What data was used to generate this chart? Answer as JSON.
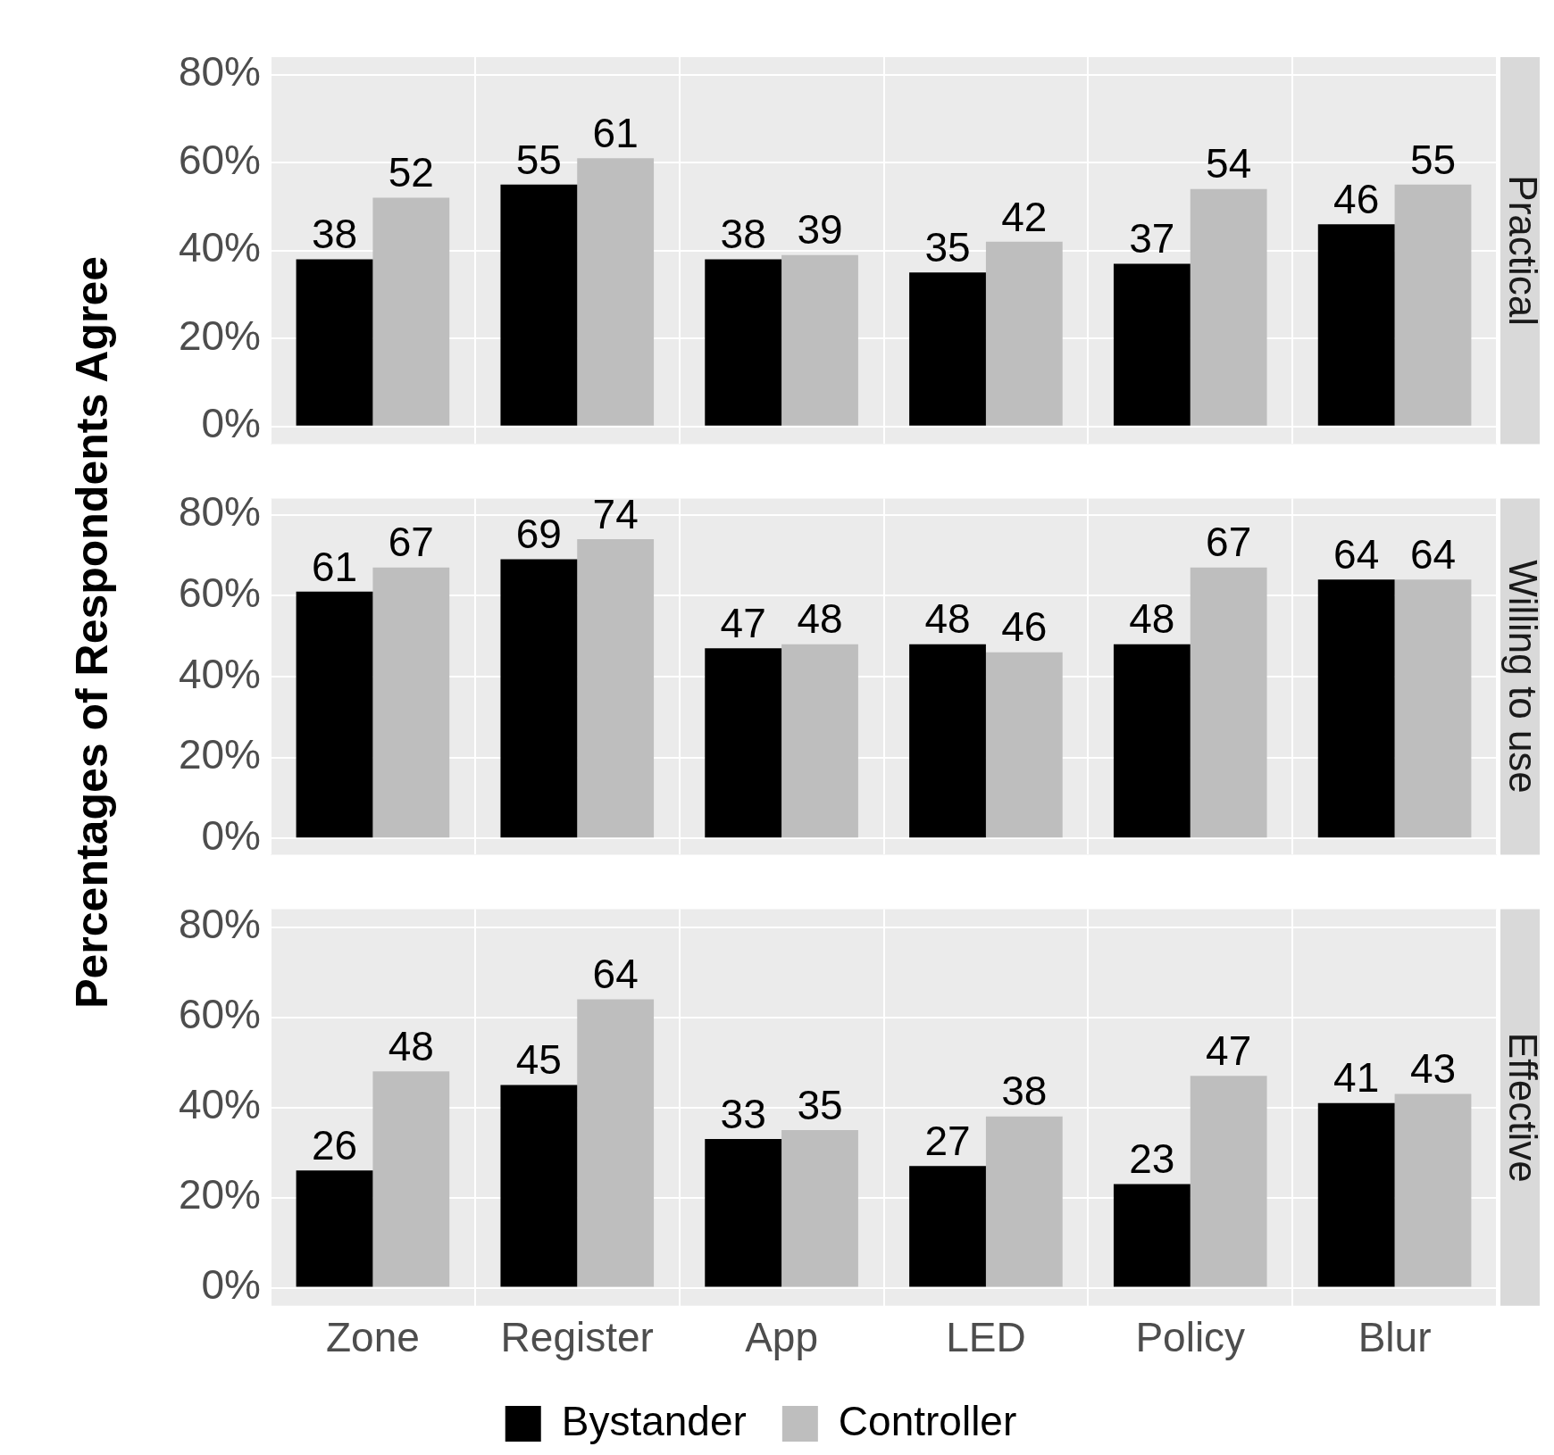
{
  "chart_data": [
    {
      "type": "bar",
      "title": "Practical",
      "categories": [
        null,
        null,
        null,
        null,
        null,
        null
      ],
      "series": [
        {
          "color": "#000000",
          "values": [
            38,
            55,
            38,
            35,
            37,
            46
          ]
        },
        {
          "color": "#bebebe",
          "values": [
            52,
            61,
            39,
            42,
            54,
            55
          ]
        }
      ],
      "ylim": [
        -4,
        84
      ],
      "yticks": [
        {
          "value": 0,
          "label": "0%"
        },
        {
          "value": 20,
          "label": "20%"
        },
        {
          "value": 40,
          "label": "40%"
        },
        {
          "value": 60,
          "label": "60%"
        },
        {
          "value": 80,
          "label": "80%"
        }
      ],
      "grid": true,
      "data_labels": true,
      "tick_labels": "y",
      "legend": false
    },
    {
      "type": "bar",
      "title": "Willing to use",
      "ylabel": "Percentages of Respondents Agree",
      "categories": [
        null,
        null,
        null,
        null,
        null,
        null
      ],
      "series": [
        {
          "color": "#000000",
          "values": [
            61,
            69,
            47,
            48,
            48,
            64
          ]
        },
        {
          "color": "#bebebe",
          "values": [
            67,
            74,
            48,
            46,
            67,
            64
          ]
        }
      ],
      "ylim": [
        -4,
        84
      ],
      "yticks": [
        {
          "value": 0,
          "label": "0%"
        },
        {
          "value": 20,
          "label": "20%"
        },
        {
          "value": 40,
          "label": "40%"
        },
        {
          "value": 60,
          "label": "60%"
        },
        {
          "value": 80,
          "label": "80%"
        }
      ],
      "grid": true,
      "data_labels": true,
      "tick_labels": "y",
      "legend": false
    },
    {
      "type": "bar",
      "title": "Effective",
      "categories": [
        "Zone",
        "Register",
        "App",
        "LED",
        "Policy",
        "Blur"
      ],
      "series": [
        {
          "name": "Bystander",
          "color": "#000000",
          "values": [
            26,
            45,
            33,
            27,
            23,
            41
          ]
        },
        {
          "name": "Controller",
          "color": "#bebebe",
          "values": [
            48,
            64,
            35,
            38,
            47,
            43
          ]
        }
      ],
      "ylim": [
        -4,
        84
      ],
      "yticks": [
        {
          "value": 0,
          "label": "0%"
        },
        {
          "value": 20,
          "label": "20%"
        },
        {
          "value": 40,
          "label": "40%"
        },
        {
          "value": 60,
          "label": "60%"
        },
        {
          "value": 80,
          "label": "80%"
        }
      ],
      "grid": true,
      "data_labels": true,
      "legend": "bottom"
    }
  ]
}
